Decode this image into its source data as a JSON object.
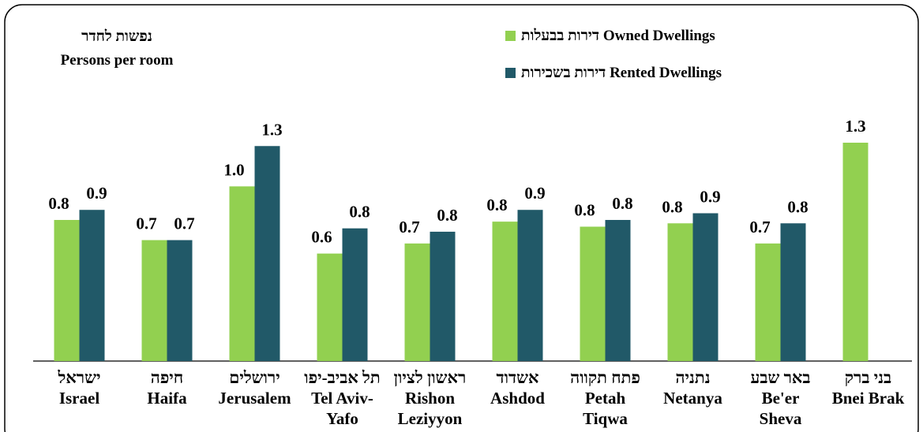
{
  "chart_data": {
    "type": "bar",
    "title": [
      "נפשות  לחדר",
      "Persons per room"
    ],
    "categories": [
      [
        "ישראל",
        "Israel"
      ],
      [
        "חיפה",
        "Haifa"
      ],
      [
        "ירושלים",
        "Jerusalem"
      ],
      [
        "תל אביב-יפו",
        "Tel Aviv-",
        "Yafo"
      ],
      [
        "ראשון לציון",
        "Rishon",
        "Leziyyon"
      ],
      [
        "אשדוד",
        "Ashdod"
      ],
      [
        "פתח תקווה",
        "Petah",
        "Tiqwa"
      ],
      [
        "נתניה",
        "Netanya"
      ],
      [
        "באר שבע",
        "Be'er",
        "Sheva"
      ],
      [
        "בני ברק",
        "Bnei Brak"
      ]
    ],
    "series": [
      {
        "name": "דירות בבעלות Owned Dwellings",
        "color": "#92d050",
        "values": [
          0.84,
          0.72,
          1.04,
          0.64,
          0.7,
          0.83,
          0.8,
          0.82,
          0.7,
          1.3
        ],
        "value_labels": [
          "0.8",
          "0.7",
          "1.0",
          "0.6",
          "0.7",
          "0.8",
          "0.8",
          "0.8",
          "0.7",
          "1.3"
        ]
      },
      {
        "name": "דירות בשכירות Rented Dwellings",
        "color": "#215968",
        "values": [
          0.9,
          0.72,
          1.28,
          0.79,
          0.77,
          0.9,
          0.84,
          0.88,
          0.82,
          null
        ],
        "value_labels": [
          "0.9",
          "0.7",
          "1.3",
          "0.8",
          "0.8",
          "0.9",
          "0.8",
          "0.9",
          "0.8",
          null
        ]
      }
    ]
  }
}
